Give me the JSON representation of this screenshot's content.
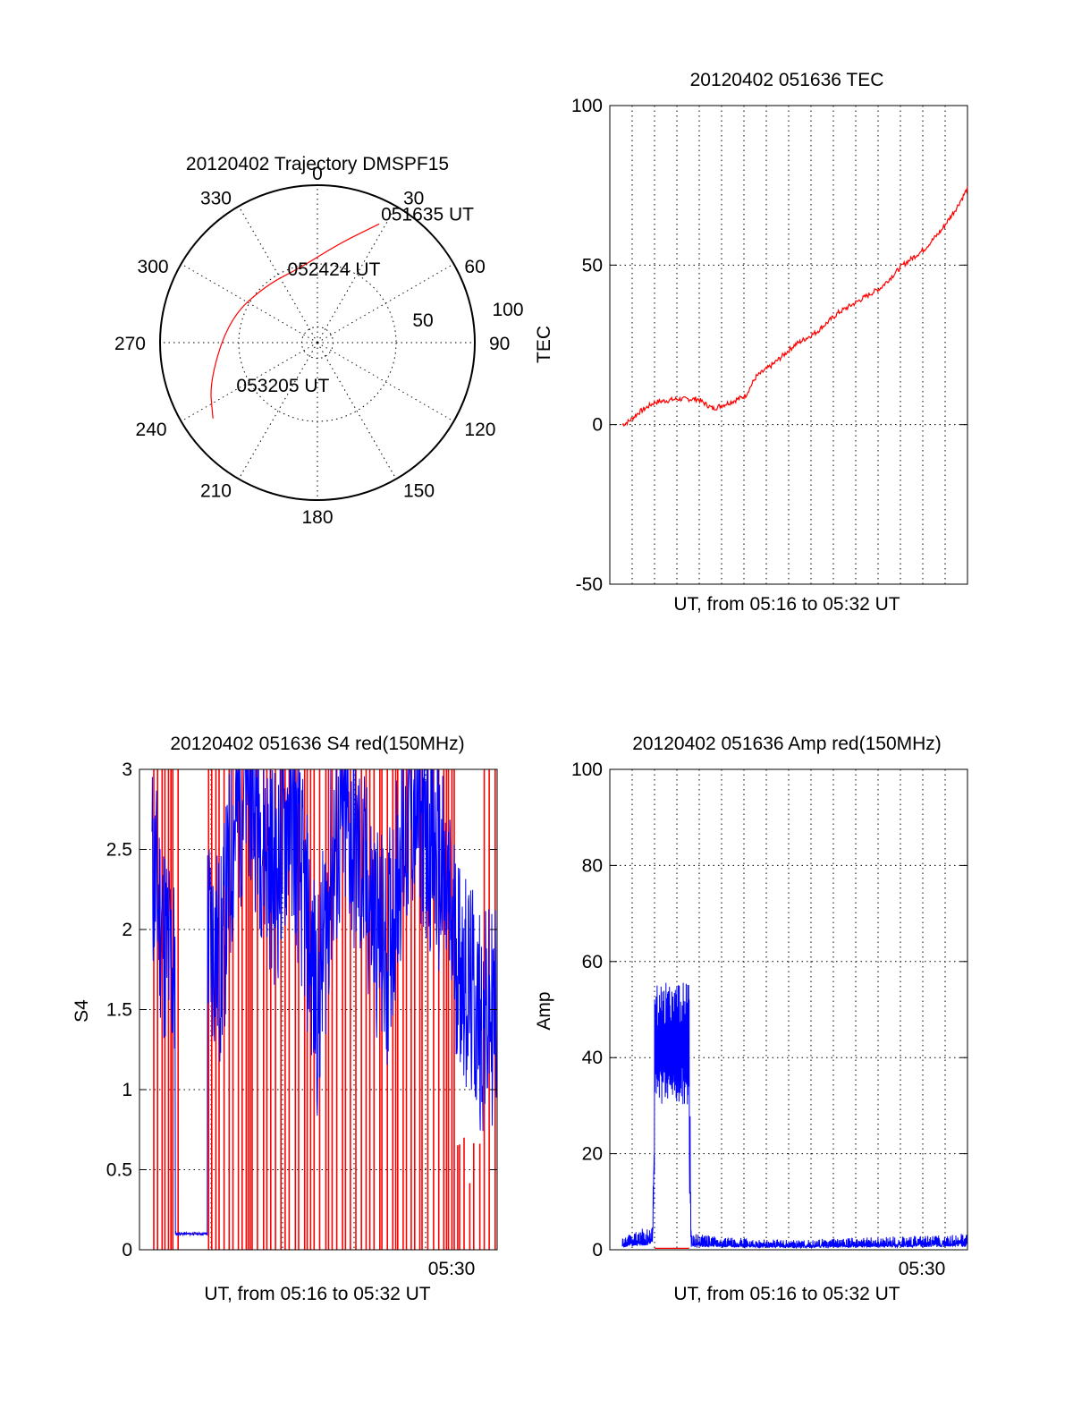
{
  "chart_data": [
    {
      "type": "polar",
      "title": "20120402 Trajectory DMSPF15",
      "angle_labels": [
        "0",
        "30",
        "60",
        "90",
        "120",
        "150",
        "180",
        "210",
        "240",
        "270",
        "300",
        "330"
      ],
      "radial_labels": [
        "50",
        "100"
      ],
      "rlim": [
        0,
        100
      ],
      "grid": true,
      "trajectory": {
        "color": "#ff0000",
        "points": [
          {
            "az": 27.5,
            "r": 85
          },
          {
            "az": 12,
            "r": 64
          },
          {
            "az": -12,
            "r": 49
          },
          {
            "az": -42,
            "r": 49
          },
          {
            "az": -75,
            "r": 58
          },
          {
            "az": -110,
            "r": 73
          },
          {
            "az": -126,
            "r": 82
          }
        ]
      },
      "annotations": [
        {
          "text": "051635 UT",
          "az": 27.5,
          "r": 85
        },
        {
          "text": "052424 UT",
          "az": 15,
          "r": 23
        },
        {
          "text": "053205 UT",
          "az": -118,
          "r": 57
        }
      ]
    },
    {
      "type": "line",
      "title": "20120402 051636 TEC",
      "xlabel": "UT, from 05:16 to 05:32 UT",
      "ylabel": "TEC",
      "ylim": [
        -50,
        100
      ],
      "yticks": [
        "-50",
        "0",
        "50",
        "100"
      ],
      "grid": true,
      "series": [
        {
          "color": "#ff0000",
          "x_minutes": [
            0.0,
            0.3,
            0.8,
            1.5,
            2.5,
            3.5,
            4.2,
            5.0,
            5.7,
            6.2,
            7.0,
            8.0,
            9.0,
            10.0,
            11.0,
            12.0,
            13.0,
            14.0,
            14.8,
            15.5,
            16.0
          ],
          "values": [
            0,
            1,
            4,
            7,
            8,
            8,
            5,
            7,
            9,
            15,
            19,
            25,
            29,
            35,
            39,
            43,
            50,
            55,
            61,
            68,
            74
          ]
        }
      ]
    },
    {
      "type": "line",
      "title": "20120402 051636 S4 red(150MHz)",
      "xlabel": "UT, from 05:16 to 05:32 UT",
      "ylabel": "S4",
      "ylim": [
        0,
        3
      ],
      "yticks": [
        "0",
        "0.5",
        "1",
        "1.5",
        "2",
        "2.5",
        "3"
      ],
      "xtick_label": "05:30",
      "grid": true,
      "series": [
        {
          "color": "#0000ff",
          "level": "high",
          "values": [
            2.4,
            1.9,
            1.6,
            2.3,
            2.0,
            1.8,
            2.7,
            3.0,
            2.6,
            2.3,
            2.8,
            2.2,
            1.5,
            2.4,
            2.7,
            2.4,
            2.1,
            1.8,
            2.5,
            2.8,
            2.6,
            2.3,
            1.9,
            1.6,
            1.4,
            1.5
          ]
        },
        {
          "color": "#ff0000",
          "level": "saturated",
          "values": [
            3.0,
            3.0,
            3.0,
            3.0,
            3.0,
            3.0,
            3.0,
            3.0,
            3.0,
            3.0,
            3.0,
            3.0,
            3.0,
            3.0,
            3.0,
            3.0,
            3.0,
            3.0,
            3.0,
            3.0,
            3.0,
            3.0,
            3.0,
            0.6,
            0.4,
            3.0
          ]
        }
      ]
    },
    {
      "type": "line",
      "title": "20120402 051636 Amp red(150MHz)",
      "xlabel": "UT, from 05:16 to 05:32 UT",
      "ylabel": "Amp",
      "ylim": [
        0,
        100
      ],
      "yticks": [
        "0",
        "20",
        "40",
        "60",
        "80",
        "100"
      ],
      "xtick_label": "05:30",
      "grid": true,
      "series": [
        {
          "color": "#0000ff",
          "x_minutes": [
            0.0,
            0.8,
            1.4,
            1.5,
            2.0,
            2.5,
            3.0,
            3.1,
            3.2,
            5.0,
            8.0,
            11.0,
            14.0,
            16.0
          ],
          "values": [
            1.5,
            2.5,
            3,
            50,
            42,
            48,
            45,
            30,
            2,
            1.5,
            1.2,
            1.5,
            1.8,
            2.0
          ]
        },
        {
          "color": "#ff0000",
          "x_minutes": [
            1.5,
            3.1
          ],
          "values": [
            0.3,
            0.3
          ]
        }
      ]
    }
  ]
}
